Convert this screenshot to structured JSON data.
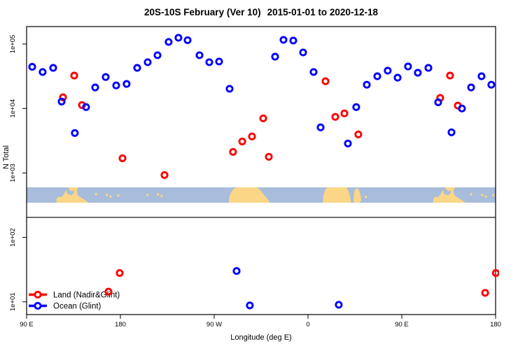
{
  "title": {
    "main": "20S-10S February (Ver 10)",
    "range": "2015-01-01 to 2020-12-18"
  },
  "legend": {
    "items": [
      {
        "label": "Land (Nadir&Glint)",
        "color": "#ff0000"
      },
      {
        "label": "Ocean (Glint)",
        "color": "#0000ff"
      }
    ]
  },
  "chart_data": {
    "type": "scatter",
    "title": "20S-10S February (Ver 10)   2015-01-01 to 2020-12-18",
    "xlabel": "Longitude (deg E)",
    "ylabel": "N Total",
    "x_axis": {
      "note": "x is degrees along axis starting at 90E, wrapping east 450 deg total",
      "span_deg": 450,
      "ticks_deg": [
        0,
        90,
        180,
        270,
        360,
        450
      ],
      "tick_labels": [
        "90 E",
        "180",
        "90 W",
        "0",
        "90 E",
        "180"
      ]
    },
    "y_axis": {
      "scale": "log10",
      "tick_exponents": [
        1,
        2,
        3,
        4,
        5
      ],
      "tick_labels": [
        "1e+01",
        "1e+02",
        "1e+03",
        "1e+04",
        "1e+05"
      ]
    },
    "series": [
      {
        "name": "Land (Nadir&Glint)",
        "color": "#ff0000",
        "points": [
          {
            "x": 34.9,
            "n": 14900
          },
          {
            "x": 45.7,
            "n": 32400
          },
          {
            "x": 53.1,
            "n": 11300
          },
          {
            "x": 78.6,
            "n": 14.4
          },
          {
            "x": 89.3,
            "n": 28
          },
          {
            "x": 92.0,
            "n": 1690
          },
          {
            "x": 132.3,
            "n": 927
          },
          {
            "x": 198.1,
            "n": 2120
          },
          {
            "x": 206.9,
            "n": 3080
          },
          {
            "x": 216.3,
            "n": 3680
          },
          {
            "x": 227.0,
            "n": 7040
          },
          {
            "x": 232.4,
            "n": 1780
          },
          {
            "x": 286.8,
            "n": 26500
          },
          {
            "x": 296.2,
            "n": 7410
          },
          {
            "x": 304.9,
            "n": 8390
          },
          {
            "x": 318.3,
            "n": 3960
          },
          {
            "x": 396.9,
            "n": 14600
          },
          {
            "x": 406.3,
            "n": 32400
          },
          {
            "x": 413.7,
            "n": 11100
          },
          {
            "x": 440.0,
            "n": 13.8
          },
          {
            "x": 450.3,
            "n": 28
          }
        ]
      },
      {
        "name": "Ocean (Glint)",
        "color": "#0000ff",
        "points": [
          {
            "x": 5.4,
            "n": 44300
          },
          {
            "x": 15.4,
            "n": 36800
          },
          {
            "x": 25.5,
            "n": 42700
          },
          {
            "x": 33.6,
            "n": 12800
          },
          {
            "x": 46.3,
            "n": 4160
          },
          {
            "x": 57.1,
            "n": 10500
          },
          {
            "x": 65.8,
            "n": 21200
          },
          {
            "x": 75.9,
            "n": 30800
          },
          {
            "x": 86.0,
            "n": 22800
          },
          {
            "x": 96.0,
            "n": 24000
          },
          {
            "x": 106.1,
            "n": 42700
          },
          {
            "x": 116.2,
            "n": 52200
          },
          {
            "x": 125.6,
            "n": 67000
          },
          {
            "x": 136.3,
            "n": 107800
          },
          {
            "x": 145.7,
            "n": 125300
          },
          {
            "x": 154.5,
            "n": 114800
          },
          {
            "x": 165.9,
            "n": 67000
          },
          {
            "x": 175.3,
            "n": 52200
          },
          {
            "x": 184.7,
            "n": 53500
          },
          {
            "x": 194.8,
            "n": 20200
          },
          {
            "x": 201.5,
            "n": 30.1
          },
          {
            "x": 214.2,
            "n": 8.8
          },
          {
            "x": 238.4,
            "n": 63700
          },
          {
            "x": 246.5,
            "n": 116200
          },
          {
            "x": 255.9,
            "n": 113300
          },
          {
            "x": 265.3,
            "n": 74100
          },
          {
            "x": 275.4,
            "n": 36800
          },
          {
            "x": 282.1,
            "n": 5090
          },
          {
            "x": 299.5,
            "n": 9.0
          },
          {
            "x": 308.3,
            "n": 2860
          },
          {
            "x": 316.3,
            "n": 10500
          },
          {
            "x": 326.4,
            "n": 23400
          },
          {
            "x": 336.5,
            "n": 31600
          },
          {
            "x": 346.5,
            "n": 38600
          },
          {
            "x": 356.0,
            "n": 30100
          },
          {
            "x": 366.0,
            "n": 44900
          },
          {
            "x": 375.4,
            "n": 35800
          },
          {
            "x": 385.5,
            "n": 42700
          },
          {
            "x": 394.9,
            "n": 12500
          },
          {
            "x": 407.7,
            "n": 4270
          },
          {
            "x": 417.7,
            "n": 10000
          },
          {
            "x": 426.5,
            "n": 21200
          },
          {
            "x": 436.5,
            "n": 31600
          },
          {
            "x": 445.9,
            "n": 23400
          }
        ]
      }
    ],
    "map_band": {
      "ocean_color": "#a8bddb",
      "land_color": "#fbd687",
      "land_polygons": [
        {
          "name": "australia-wrap1",
          "pts": [
            [
              28.5,
              1
            ],
            [
              28.9,
              0.72
            ],
            [
              30.7,
              0.6
            ],
            [
              33,
              0.65
            ],
            [
              35,
              0.52
            ],
            [
              37,
              0.3
            ],
            [
              38.1,
              0.14
            ],
            [
              38.9,
              0.42
            ],
            [
              41,
              0.47
            ],
            [
              43,
              0.52
            ],
            [
              45,
              0.4
            ],
            [
              46.8,
              0.12
            ],
            [
              47.8,
              0.04
            ],
            [
              48.7,
              0.45
            ],
            [
              50,
              0.58
            ],
            [
              52.5,
              0.68
            ],
            [
              55,
              0.78
            ],
            [
              57.5,
              0.9
            ],
            [
              59.5,
              1
            ]
          ]
        },
        {
          "name": "new-guinea-wrap1",
          "pts": [
            [
              40,
              0
            ],
            [
              49.5,
              0
            ],
            [
              48,
              0.2
            ],
            [
              43.5,
              0.26
            ],
            [
              41,
              0.14
            ]
          ]
        },
        {
          "name": "south-america",
          "pts": [
            [
              194,
              1
            ],
            [
              194.6,
              0.58
            ],
            [
              196.2,
              0.33
            ],
            [
              198.6,
              0.1
            ],
            [
              201.5,
              0
            ],
            [
              220.5,
              0
            ],
            [
              223.5,
              0.12
            ],
            [
              226.5,
              0.38
            ],
            [
              229.5,
              0.62
            ],
            [
              232,
              0.85
            ],
            [
              233.5,
              1
            ]
          ]
        },
        {
          "name": "africa",
          "pts": [
            [
              284.3,
              1
            ],
            [
              284.8,
              0.52
            ],
            [
              286.2,
              0.22
            ],
            [
              288.5,
              0
            ],
            [
              307,
              0
            ],
            [
              309,
              0.28
            ],
            [
              310.5,
              0.62
            ],
            [
              311.2,
              1
            ]
          ]
        },
        {
          "name": "madagascar",
          "pts": [
            [
              313.5,
              0.92
            ],
            [
              314.3,
              0.3
            ],
            [
              316,
              0.06
            ],
            [
              318.5,
              0.12
            ],
            [
              320.5,
              0.5
            ],
            [
              321,
              0.88
            ],
            [
              318.8,
              1
            ],
            [
              315.2,
              1
            ]
          ]
        },
        {
          "name": "australia-wrap2",
          "pts": [
            [
              390,
              1
            ],
            [
              390.4,
              0.72
            ],
            [
              392.2,
              0.6
            ],
            [
              394.5,
              0.65
            ],
            [
              396.5,
              0.52
            ],
            [
              398.5,
              0.3
            ],
            [
              399.6,
              0.14
            ],
            [
              400.4,
              0.42
            ],
            [
              402.5,
              0.47
            ],
            [
              404.5,
              0.52
            ],
            [
              406.5,
              0.4
            ],
            [
              408.3,
              0.12
            ],
            [
              409.3,
              0.04
            ],
            [
              410.2,
              0.45
            ],
            [
              411.5,
              0.58
            ],
            [
              414,
              0.68
            ],
            [
              416.5,
              0.78
            ],
            [
              419,
              0.9
            ],
            [
              421,
              1
            ]
          ]
        },
        {
          "name": "new-guinea-wrap2",
          "pts": [
            [
              401.5,
              0
            ],
            [
              411,
              0
            ],
            [
              409.5,
              0.2
            ],
            [
              405,
              0.26
            ],
            [
              402.5,
              0.14
            ]
          ]
        }
      ],
      "islands": [
        [
          66.5,
          0.45
        ],
        [
          77,
          0.5
        ],
        [
          80.5,
          0.6
        ],
        [
          88,
          0.52
        ],
        [
          116,
          0.5
        ],
        [
          126,
          0.46
        ],
        [
          129.5,
          0.56
        ],
        [
          325.5,
          0.62
        ],
        [
          426.5,
          0.45
        ],
        [
          437,
          0.5
        ],
        [
          440.5,
          0.6
        ],
        [
          448,
          0.52
        ]
      ]
    }
  }
}
